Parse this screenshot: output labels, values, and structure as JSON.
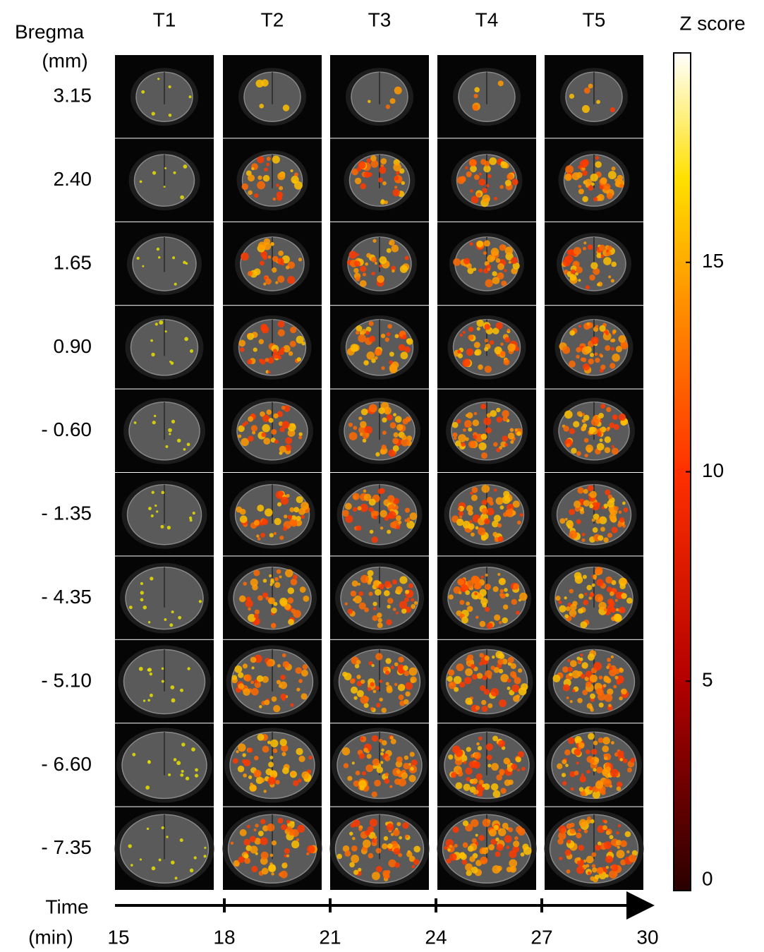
{
  "header": {
    "bregma_label": "Bregma",
    "bregma_unit": "(mm)",
    "columns": [
      "T1",
      "T2",
      "T3",
      "T4",
      "T5"
    ]
  },
  "rows": [
    "3.15",
    "2.40",
    "1.65",
    "0.90",
    "- 0.60",
    "- 1.35",
    "- 4.35",
    "- 5.10",
    "- 6.60",
    "- 7.35"
  ],
  "colorbar": {
    "title": "Z score",
    "lim": [
      0,
      20
    ],
    "ticks": [
      0,
      5,
      10,
      15
    ]
  },
  "time_axis": {
    "label": "Time",
    "unit": "(min)",
    "lim": [
      15,
      30
    ],
    "ticks": [
      15,
      18,
      21,
      24,
      27,
      30
    ]
  }
}
